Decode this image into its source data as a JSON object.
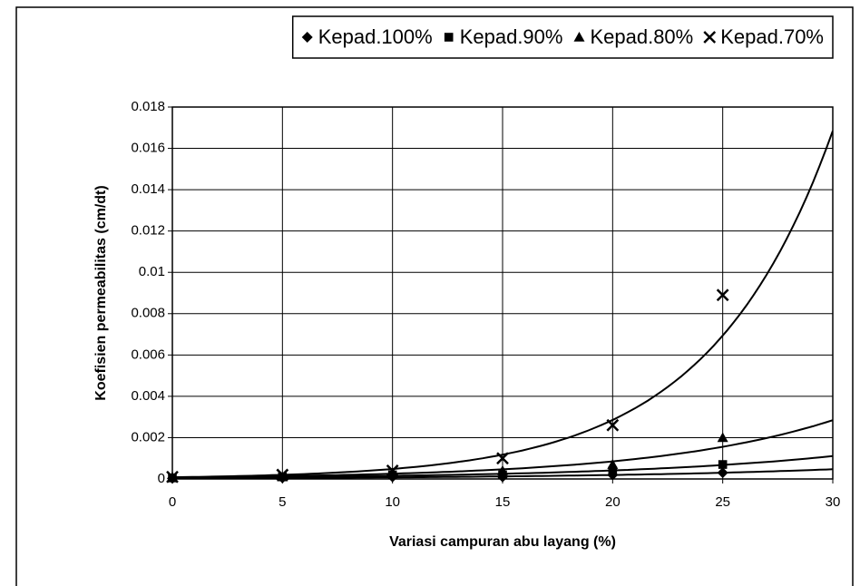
{
  "chart_data": {
    "type": "scatter",
    "xlabel": "Variasi campuran abu layang (%)",
    "ylabel": "Koefisien permeabilitas (cm/dt)",
    "x": [
      0,
      5,
      10,
      15,
      20,
      25
    ],
    "series": [
      {
        "name": "Kepad.100%",
        "color": "#000000",
        "marker": "diamond",
        "values": [
          3e-05,
          5e-05,
          0.0001,
          0.0001,
          0.0002,
          0.0003
        ]
      },
      {
        "name": "Kepad.90%",
        "color": "#000000",
        "marker": "square",
        "values": [
          5e-05,
          0.0001,
          0.0002,
          0.0002,
          0.0004,
          0.0007
        ]
      },
      {
        "name": "Kepad.80%",
        "color": "#000000",
        "marker": "triangle",
        "values": [
          0.0001,
          0.0001,
          0.0003,
          0.0004,
          0.0007,
          0.002
        ]
      },
      {
        "name": "Kepad.70%",
        "color": "#000000",
        "marker": "x",
        "values": [
          0.0001,
          0.0002,
          0.0004,
          0.001,
          0.0026,
          0.0089
        ]
      }
    ],
    "trendline": "exponential",
    "xlim": [
      0,
      30
    ],
    "xticks": [
      0,
      5,
      10,
      15,
      20,
      25,
      30
    ],
    "ylim": [
      0,
      0.018
    ],
    "yticks": [
      0,
      0.002,
      0.004,
      0.006,
      0.008,
      0.01,
      0.012,
      0.014,
      0.016,
      0.018
    ],
    "grid": true,
    "legend": "top"
  }
}
